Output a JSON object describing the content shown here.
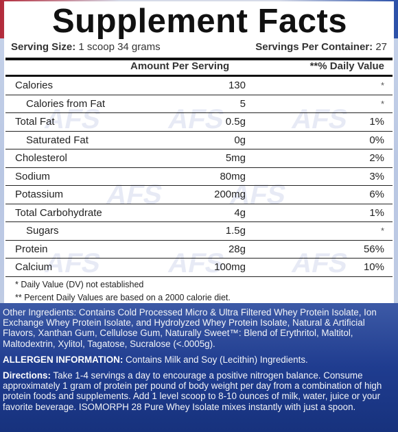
{
  "title": "Supplement Facts",
  "serving_size_label": "Serving Size:",
  "serving_size_value": "1 scoop 34 grams",
  "servings_per_container_label": "Servings Per Container:",
  "servings_per_container_value": "27",
  "header": {
    "amount": "Amount Per Serving",
    "daily_value": "**% Daily Value"
  },
  "rows": [
    {
      "name": "Calories",
      "amount": "130",
      "dv": "*",
      "indent": false
    },
    {
      "name": "Calories from Fat",
      "amount": "5",
      "dv": "*",
      "indent": true
    },
    {
      "name": "Total Fat",
      "amount": "0.5g",
      "dv": "1%",
      "indent": false
    },
    {
      "name": "Saturated Fat",
      "amount": "0g",
      "dv": "0%",
      "indent": true
    },
    {
      "name": "Cholesterol",
      "amount": "5mg",
      "dv": "2%",
      "indent": false
    },
    {
      "name": "Sodium",
      "amount": "80mg",
      "dv": "3%",
      "indent": false
    },
    {
      "name": "Potassium",
      "amount": "200mg",
      "dv": "6%",
      "indent": false
    },
    {
      "name": "Total Carbohydrate",
      "amount": "4g",
      "dv": "1%",
      "indent": false
    },
    {
      "name": "Sugars",
      "amount": "1.5g",
      "dv": "*",
      "indent": true
    },
    {
      "name": "Protein",
      "amount": "28g",
      "dv": "56%",
      "indent": false
    },
    {
      "name": "Calcium",
      "amount": "100mg",
      "dv": "10%",
      "indent": false
    }
  ],
  "footnote1": "* Daily Value (DV) not established",
  "footnote2": "** Percent Daily Values are based on a 2000 calorie diet.",
  "other_ingredients": "Other Ingredients: Contains Cold Processed Micro & Ultra Filtered Whey Protein Isolate, Ion Exchange Whey Protein Isolate, and Hydrolyzed Whey Protein Isolate, Natural & Artificial Flavors, Xanthan Gum, Cellulose Gum, Naturally Sweet™: Blend of Erythritol, Maltitol, Maltodextrin, Xylitol, Tagatose, Sucralose (<.0005g).",
  "allergen_label": "ALLERGEN INFORMATION:",
  "allergen_text": " Contains Milk and Soy (Lecithin) Ingredients.",
  "directions_label": "Directions:",
  "directions_text": " Take 1-4 servings a day to encourage a positive nitrogen balance. Consume approximately 1 gram of protein per pound of body weight per day from a combination of high protein foods and supplements. Add 1 level scoop to 8-10 ounces of milk, water, juice or your favorite beverage.  ISOMORPH 28  Pure Whey Isolate mixes instantly with just a spoon.",
  "watermark_text": "AFS"
}
